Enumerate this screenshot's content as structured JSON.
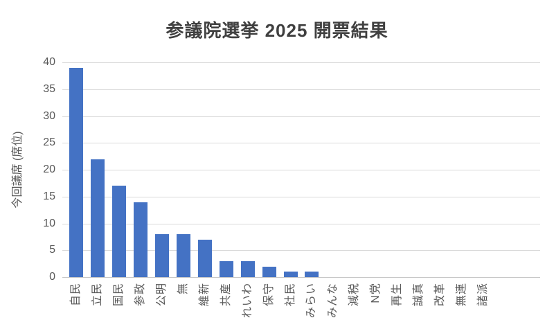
{
  "chart_data": {
    "type": "bar",
    "title": "参議院選挙 2025 開票結果",
    "ylabel": "今回議席 (席位)",
    "xlabel": "",
    "categories": [
      "自民",
      "立民",
      "国民",
      "参政",
      "公明",
      "無",
      "維新",
      "共産",
      "れいわ",
      "保守",
      "社民",
      "みらい",
      "みんな",
      "減税",
      "N党",
      "再生",
      "誠真",
      "改革",
      "無連",
      "諸派"
    ],
    "values": [
      39,
      22,
      17,
      14,
      8,
      8,
      7,
      3,
      3,
      2,
      1,
      1,
      0,
      0,
      0,
      0,
      0,
      0,
      0,
      0
    ],
    "ylim": [
      0,
      40
    ],
    "yticks": [
      0,
      5,
      10,
      15,
      20,
      25,
      30,
      35,
      40
    ],
    "grid": true,
    "legend": false,
    "colors": {
      "bar": "#4472C4",
      "gridline": "#D9D9D9",
      "axis_line": "#C8C8C8",
      "tick_label": "#595959",
      "title": "#404040",
      "background": "#FFFFFF"
    }
  }
}
